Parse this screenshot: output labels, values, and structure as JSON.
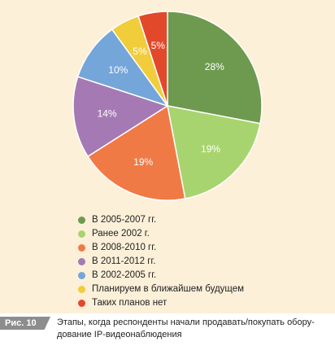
{
  "chart_data": {
    "type": "pie",
    "slices": [
      {
        "label": "В 2005-2007 гг.",
        "value": 28,
        "value_label": "28%",
        "color": "#6e9a4f"
      },
      {
        "label": "Ранее 2002 г.",
        "value": 19,
        "value_label": "19%",
        "color": "#a8d46f"
      },
      {
        "label": "В 2008-2010 гг.",
        "value": 19,
        "value_label": "19%",
        "color": "#f07a45"
      },
      {
        "label": "В 2011-2012 гг.",
        "value": 14,
        "value_label": "14%",
        "color": "#a57ab4"
      },
      {
        "label": "В 2002-2005 гг.",
        "value": 10,
        "value_label": "10%",
        "color": "#74a6d9"
      },
      {
        "label": "Планируем в ближайшем будущем",
        "value": 5,
        "value_label": "5%",
        "color": "#f1cd3c"
      },
      {
        "label": "Таких планов нет",
        "value": 5,
        "value_label": "5%",
        "color": "#e2492b"
      }
    ],
    "start_angle_deg": 0,
    "direction": "clockwise",
    "legend_position": "bottom"
  },
  "caption": {
    "tag": "Рис. 10",
    "text": "Этапы, когда респонденты начали продавать/покупать обору­дование IP-видеонаблюдения"
  },
  "colors": {
    "background": "#fdf0d9",
    "caption_tag": "#8d8d8d"
  }
}
